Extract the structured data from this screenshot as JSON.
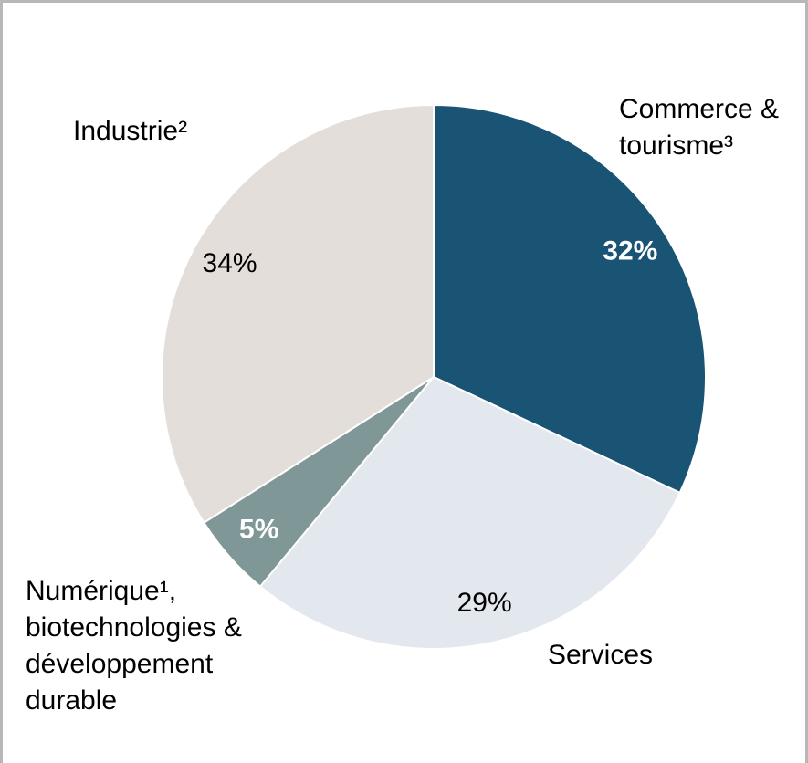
{
  "chart_data": {
    "type": "pie",
    "categories": [
      "Commerce & tourisme³",
      "Services",
      "Numérique¹, biotechnologies & développement durable",
      "Industrie²"
    ],
    "values": [
      32,
      29,
      5,
      34
    ],
    "value_labels": [
      "32%",
      "29%",
      "5%",
      "34%"
    ],
    "colors": [
      "#1a5474",
      "#e3e7ee",
      "#7f9797",
      "#e4dedb"
    ],
    "label_colors": [
      "#ffffff",
      "#000000",
      "#ffffff",
      "#000000"
    ],
    "label_bold": [
      true,
      false,
      true,
      false
    ]
  }
}
